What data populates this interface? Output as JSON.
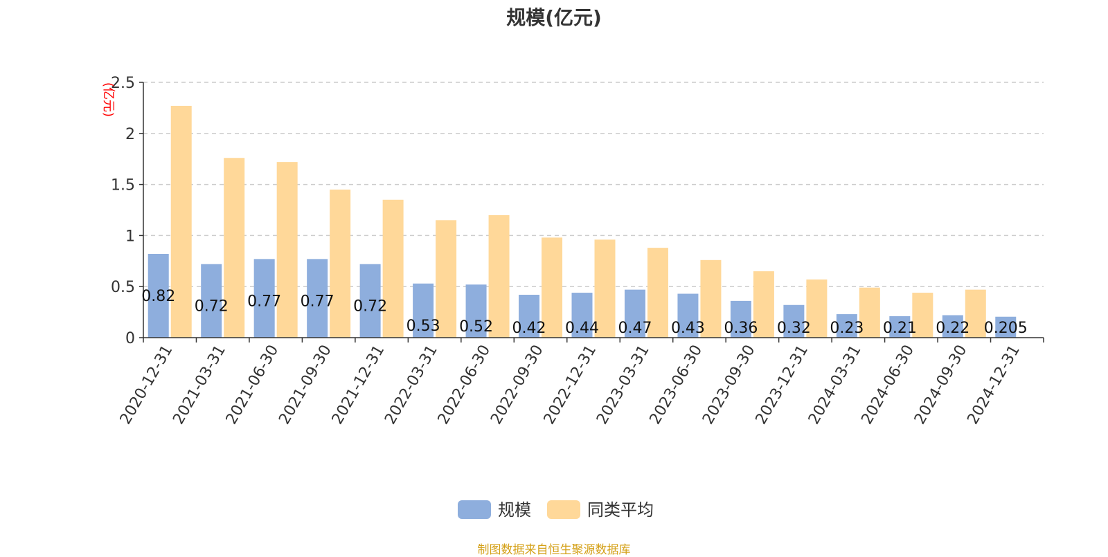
{
  "chart_data": {
    "type": "bar",
    "title": "规模(亿元)",
    "ylabel": "(亿元)",
    "xlabel": "",
    "ylim": [
      0,
      2.5
    ],
    "yticks": [
      0,
      0.5,
      1,
      1.5,
      2,
      2.5
    ],
    "ytick_labels": [
      "0",
      "0.5",
      "1",
      "1.5",
      "2",
      "2.5"
    ],
    "grid": true,
    "legend_position": "bottom",
    "categories": [
      "2020-12-31",
      "2021-03-31",
      "2021-06-30",
      "2021-09-30",
      "2021-12-31",
      "2022-03-31",
      "2022-06-30",
      "2022-09-30",
      "2022-12-31",
      "2023-03-31",
      "2023-06-30",
      "2023-09-30",
      "2023-12-31",
      "2024-03-31",
      "2024-06-30",
      "2024-09-30",
      "2024-12-31"
    ],
    "series": [
      {
        "name": "规模",
        "color": "#8eaedd",
        "values": [
          0.82,
          0.72,
          0.77,
          0.77,
          0.72,
          0.53,
          0.52,
          0.42,
          0.44,
          0.47,
          0.43,
          0.36,
          0.32,
          0.23,
          0.21,
          0.22,
          0.205
        ],
        "labels": [
          "0.82",
          "0.72",
          "0.77",
          "0.77",
          "0.72",
          "0.53",
          "0.52",
          "0.42",
          "0.44",
          "0.47",
          "0.43",
          "0.36",
          "0.32",
          "0.23",
          "0.21",
          "0.22",
          "0.205"
        ]
      },
      {
        "name": "同类平均",
        "color": "#ffd899",
        "values": [
          2.27,
          1.76,
          1.72,
          1.45,
          1.35,
          1.15,
          1.2,
          0.98,
          0.96,
          0.88,
          0.76,
          0.65,
          0.57,
          0.49,
          0.44,
          0.47,
          null
        ]
      }
    ]
  },
  "footer": {
    "source": "制图数据来自恒生聚源数据库"
  }
}
